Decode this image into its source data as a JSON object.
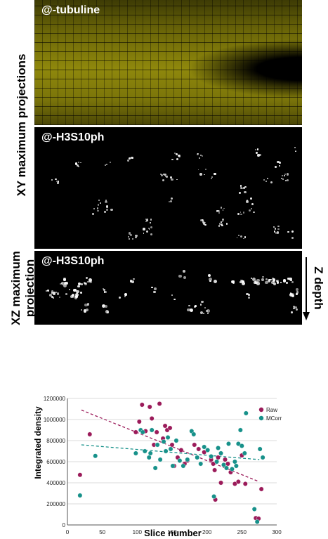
{
  "panels": {
    "tubulin_label": "@-tubuline",
    "h3_xy_label": "@-H3S10ph",
    "h3_xz_label": "@-H3S10ph",
    "tubulin_color": "#c8c000"
  },
  "side_labels": {
    "xy": "XY maximum projections",
    "xz_line1": "XZ maximum",
    "xz_line2": "projection",
    "z_depth": "Z depth"
  },
  "chart_data": {
    "type": "scatter",
    "title": "",
    "xlabel": "Slice number",
    "ylabel": "Integrated density",
    "xlim": [
      0,
      300
    ],
    "ylim": [
      0,
      1200000
    ],
    "xticks": [
      0,
      50,
      100,
      150,
      200,
      250,
      300
    ],
    "yticks": [
      0,
      200000,
      400000,
      600000,
      800000,
      1000000,
      1200000
    ],
    "grid": true,
    "legend_position": "top-right",
    "series": [
      {
        "name": "Raw",
        "color": "#9b1b5a",
        "trend": [
          [
            20,
            1090000
          ],
          [
            275,
            410000
          ]
        ],
        "points": [
          [
            18,
            475000
          ],
          [
            32,
            860000
          ],
          [
            98,
            880000
          ],
          [
            103,
            980000
          ],
          [
            107,
            1140000
          ],
          [
            112,
            890000
          ],
          [
            118,
            1120000
          ],
          [
            121,
            1010000
          ],
          [
            124,
            760000
          ],
          [
            128,
            880000
          ],
          [
            132,
            1150000
          ],
          [
            137,
            820000
          ],
          [
            140,
            940000
          ],
          [
            143,
            900000
          ],
          [
            147,
            920000
          ],
          [
            150,
            760000
          ],
          [
            153,
            560000
          ],
          [
            158,
            640000
          ],
          [
            163,
            710000
          ],
          [
            168,
            580000
          ],
          [
            172,
            610000
          ],
          [
            182,
            760000
          ],
          [
            188,
            720000
          ],
          [
            196,
            690000
          ],
          [
            206,
            620000
          ],
          [
            209,
            580000
          ],
          [
            211,
            520000
          ],
          [
            212,
            240000
          ],
          [
            216,
            640000
          ],
          [
            220,
            400000
          ],
          [
            226,
            620000
          ],
          [
            230,
            580000
          ],
          [
            234,
            500000
          ],
          [
            240,
            390000
          ],
          [
            245,
            410000
          ],
          [
            250,
            660000
          ],
          [
            255,
            390000
          ],
          [
            270,
            65000
          ],
          [
            274,
            60000
          ],
          [
            278,
            340000
          ]
        ]
      },
      {
        "name": "MCorr",
        "color": "#17918a",
        "trend": [
          [
            20,
            760000
          ],
          [
            275,
            620000
          ]
        ],
        "points": [
          [
            18,
            280000
          ],
          [
            40,
            655000
          ],
          [
            98,
            680000
          ],
          [
            105,
            900000
          ],
          [
            108,
            880000
          ],
          [
            111,
            700000
          ],
          [
            117,
            640000
          ],
          [
            119,
            680000
          ],
          [
            121,
            900000
          ],
          [
            126,
            540000
          ],
          [
            129,
            760000
          ],
          [
            133,
            620000
          ],
          [
            138,
            790000
          ],
          [
            141,
            700000
          ],
          [
            144,
            830000
          ],
          [
            148,
            720000
          ],
          [
            151,
            560000
          ],
          [
            156,
            800000
          ],
          [
            161,
            610000
          ],
          [
            166,
            560000
          ],
          [
            172,
            620000
          ],
          [
            178,
            890000
          ],
          [
            181,
            860000
          ],
          [
            186,
            640000
          ],
          [
            191,
            580000
          ],
          [
            196,
            740000
          ],
          [
            201,
            710000
          ],
          [
            206,
            650000
          ],
          [
            210,
            270000
          ],
          [
            214,
            600000
          ],
          [
            216,
            730000
          ],
          [
            220,
            680000
          ],
          [
            224,
            570000
          ],
          [
            228,
            540000
          ],
          [
            231,
            770000
          ],
          [
            236,
            530000
          ],
          [
            240,
            600000
          ],
          [
            242,
            560000
          ],
          [
            245,
            770000
          ],
          [
            248,
            900000
          ],
          [
            250,
            750000
          ],
          [
            254,
            680000
          ],
          [
            256,
            1060000
          ],
          [
            268,
            150000
          ],
          [
            272,
            30000
          ],
          [
            276,
            720000
          ],
          [
            280,
            640000
          ]
        ]
      }
    ]
  }
}
